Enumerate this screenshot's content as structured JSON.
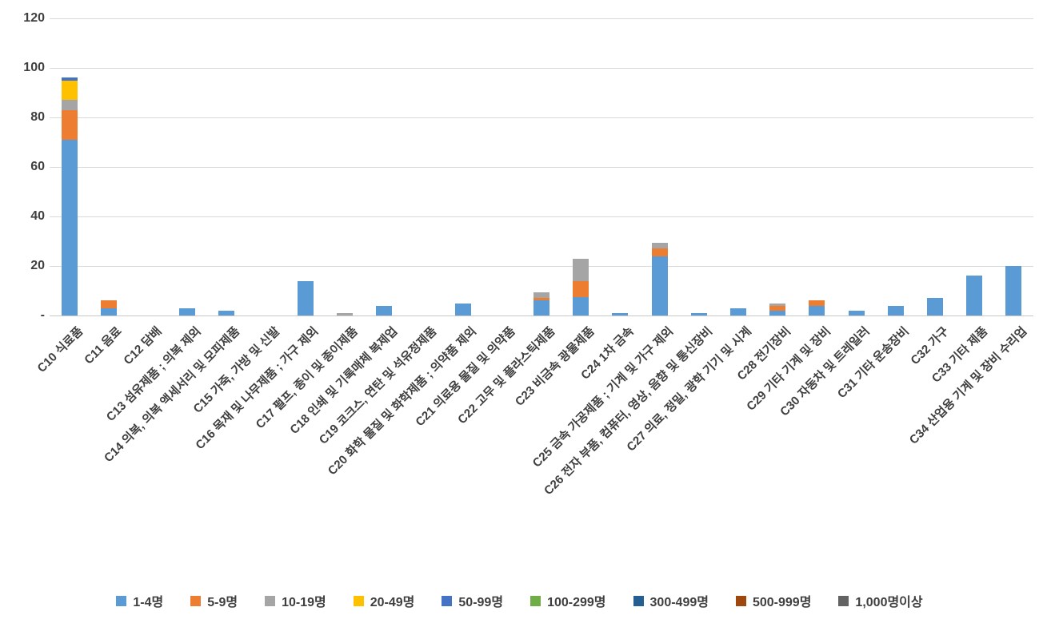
{
  "chart_data": {
    "type": "bar",
    "stacked": true,
    "title": "",
    "xlabel": "",
    "ylabel": "",
    "ylim": [
      0,
      120
    ],
    "grid": "horizontal",
    "legend_position": "bottom",
    "yticks": [
      {
        "label": "120",
        "value": 120
      },
      {
        "label": "100",
        "value": 100
      },
      {
        "label": "80",
        "value": 80
      },
      {
        "label": "60",
        "value": 60
      },
      {
        "label": "40",
        "value": 40
      },
      {
        "label": "20",
        "value": 20
      },
      {
        "label": "-",
        "value": 0
      }
    ],
    "categories": [
      "C10 식료품",
      "C11 음료",
      "C12 담배",
      "C13 섬유제품 ; 의복 제외",
      "C14 의복, 의복 액세서리 및 모피제품",
      "C15 가죽, 가방 및 신발",
      "C16 목재 및 나무제품 ; 가구 제외",
      "C17 펄프, 종이 및 종이제품",
      "C18 인쇄 및 기록매체 복제업",
      "C19 코크스, 연탄 및 석유정제품",
      "C20 화학 물질 및 화학제품 ; 의약품 제외",
      "C21 의료용 물질 및 의약품",
      "C22 고무 및 플라스틱제품",
      "C23 비금속 광물제품",
      "C24 1차 금속",
      "C25 금속 가공제품 ; 기계 및 가구 제외",
      "C26 전자 부품, 컴퓨터, 영상, 음향 및 통신장비",
      "C27 의료, 정밀, 광학 기기 및 시계",
      "C28 전기장비",
      "C29 기타 기계 및 장비",
      "C30 자동차 및 트레일러",
      "C31 기타 운송장비",
      "C32 가구",
      "C33 기타 제품",
      "C34 산업용 기계 및 장비 수리업"
    ],
    "series": [
      {
        "name": "1-4명",
        "color": "#5B9BD5",
        "values": [
          71,
          3,
          0,
          3,
          2,
          0,
          14,
          0,
          4,
          0,
          5,
          0,
          6,
          7.5,
          1,
          24,
          1,
          3,
          2,
          4,
          2,
          4,
          7,
          16,
          20
        ]
      },
      {
        "name": "5-9명",
        "color": "#ED7D31",
        "values": [
          12,
          3,
          0,
          0,
          0,
          0,
          0,
          0,
          0,
          0,
          0,
          0,
          1,
          6.5,
          0,
          3,
          0,
          0,
          2,
          2,
          0,
          0,
          0,
          0,
          0
        ]
      },
      {
        "name": "10-19명",
        "color": "#A5A5A5",
        "values": [
          4,
          0,
          0,
          0,
          0,
          0,
          0,
          1,
          0,
          0,
          0,
          0,
          2.5,
          9,
          0,
          2.5,
          0,
          0,
          1,
          0,
          0,
          0,
          0,
          0,
          0
        ]
      },
      {
        "name": "20-49명",
        "color": "#FFC000",
        "values": [
          8,
          0,
          0,
          0,
          0,
          0,
          0,
          0,
          0,
          0,
          0,
          0,
          0,
          0,
          0,
          0,
          0,
          0,
          0,
          0,
          0,
          0,
          0,
          0,
          0
        ]
      },
      {
        "name": "50-99명",
        "color": "#4472C4",
        "values": [
          1,
          0,
          0,
          0,
          0,
          0,
          0,
          0,
          0,
          0,
          0,
          0,
          0,
          0,
          0,
          0,
          0,
          0,
          0,
          0,
          0,
          0,
          0,
          0,
          0
        ]
      },
      {
        "name": "100-299명",
        "color": "#70AD47",
        "values": [
          0,
          0,
          0,
          0,
          0,
          0,
          0,
          0,
          0,
          0,
          0,
          0,
          0,
          0,
          0,
          0,
          0,
          0,
          0,
          0,
          0,
          0,
          0,
          0,
          0
        ]
      },
      {
        "name": "300-499명",
        "color": "#255E91",
        "values": [
          0,
          0,
          0,
          0,
          0,
          0,
          0,
          0,
          0,
          0,
          0,
          0,
          0,
          0,
          0,
          0,
          0,
          0,
          0,
          0,
          0,
          0,
          0,
          0,
          0
        ]
      },
      {
        "name": "500-999명",
        "color": "#9E480E",
        "values": [
          0,
          0,
          0,
          0,
          0,
          0,
          0,
          0,
          0,
          0,
          0,
          0,
          0,
          0,
          0,
          0,
          0,
          0,
          0,
          0,
          0,
          0,
          0,
          0,
          0
        ]
      },
      {
        "name": "1,000명이상",
        "color": "#636363",
        "values": [
          0,
          0,
          0,
          0,
          0,
          0,
          0,
          0,
          0,
          0,
          0,
          0,
          0,
          0,
          0,
          0,
          0,
          0,
          0,
          0,
          0,
          0,
          0,
          0,
          0
        ]
      }
    ]
  },
  "colors": {
    "background": "#FFFFFF",
    "gridline": "#D9D9D9",
    "axis_line": "#C9C9C9",
    "axis_text": "#3F3F3F"
  }
}
